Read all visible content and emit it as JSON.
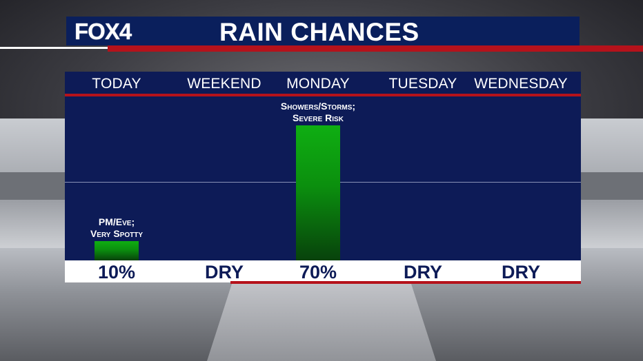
{
  "header": {
    "logo": "FOX4",
    "title": "RAIN CHANCES"
  },
  "colors": {
    "header_bg": "#0a1f5c",
    "panel_bg": "#0d1b57",
    "accent_red": "#b5121b",
    "bar_green": "#0fae12"
  },
  "chart_data": {
    "type": "bar",
    "categories": [
      "TODAY",
      "WEEKEND",
      "MONDAY",
      "TUESDAY",
      "WEDNESDAY"
    ],
    "values": [
      10,
      0,
      70,
      0,
      0
    ],
    "value_labels": [
      "10%",
      "DRY",
      "70%",
      "DRY",
      "DRY"
    ],
    "annotations": [
      {
        "category": "TODAY",
        "lines": [
          "PM/Eve;",
          "Very Spotty"
        ]
      },
      {
        "category": "MONDAY",
        "lines": [
          "Showers/Storms;",
          "Severe Risk"
        ]
      }
    ],
    "ylim": [
      0,
      100
    ],
    "grid": true,
    "legend": "none"
  }
}
